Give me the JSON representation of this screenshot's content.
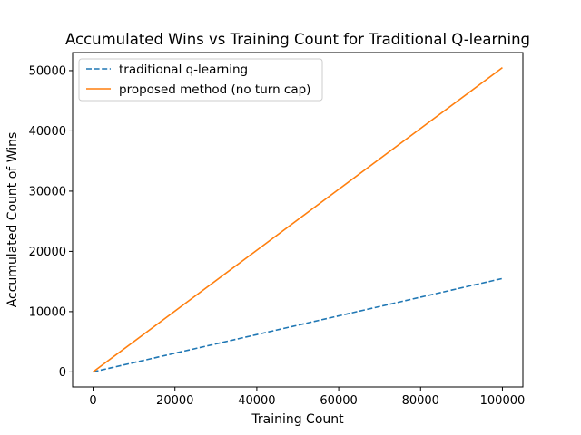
{
  "chart_data": {
    "type": "line",
    "title": "Accumulated Wins vs Training Count for Traditional Q-learning",
    "xlabel": "Training Count",
    "ylabel": "Accumulated Count of Wins",
    "xlim": [
      -5000,
      105000
    ],
    "ylim": [
      -2500,
      53000
    ],
    "xticks": [
      0,
      20000,
      40000,
      60000,
      80000,
      100000
    ],
    "xtick_labels": [
      "0",
      "20000",
      "40000",
      "60000",
      "80000",
      "100000"
    ],
    "yticks": [
      0,
      10000,
      20000,
      30000,
      40000,
      50000
    ],
    "ytick_labels": [
      "0",
      "10000",
      "20000",
      "30000",
      "40000",
      "50000"
    ],
    "grid": false,
    "legend_position": "top-left",
    "series": [
      {
        "name": "traditional q-learning",
        "color": "#1f77b4",
        "style": "dashed",
        "x": [
          0,
          20000,
          40000,
          60000,
          80000,
          100000
        ],
        "y": [
          0,
          3100,
          6200,
          9300,
          12400,
          15500
        ]
      },
      {
        "name": "proposed method (no turn cap)",
        "color": "#ff7f0e",
        "style": "solid",
        "x": [
          0,
          20000,
          40000,
          60000,
          80000,
          100000
        ],
        "y": [
          0,
          10100,
          20200,
          30300,
          40400,
          50500
        ]
      }
    ]
  }
}
